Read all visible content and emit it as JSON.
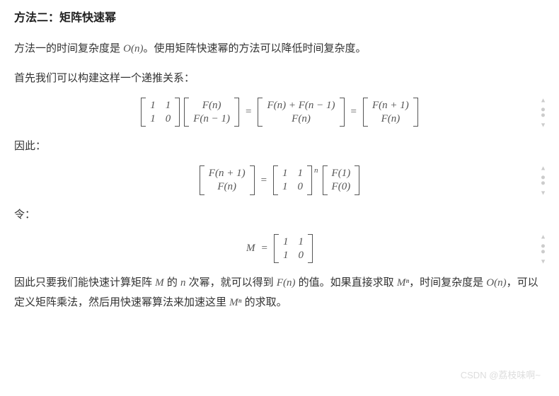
{
  "heading": "方法二：矩阵快速幂",
  "para1_a": "方法一的时间复杂度是 ",
  "para1_On": "O(n)",
  "para1_b": "。使用矩阵快速幂的方法可以降低时间复杂度。",
  "para2": "首先我们可以构建这样一个递推关系：",
  "para3": "因此：",
  "para4": "令：",
  "para5_a": "因此只要我们能快速计算矩阵 ",
  "para5_M": "M",
  "para5_b": " 的 ",
  "para5_n": "n",
  "para5_c": " 次幂，就可以得到 ",
  "para5_Fn": "F(n)",
  "para5_d": " 的值。如果直接求取 ",
  "para5_Mn": "Mⁿ",
  "para5_e": "，时间复杂度是 ",
  "para5_On": "O(n)",
  "para5_f": "，可以定义矩阵乘法，然后用快速幂算法来加速这里 ",
  "para5_Mn2": "Mⁿ",
  "para5_g": " 的求取。",
  "matrix": {
    "m11": "1",
    "m12": "1",
    "m21": "1",
    "m22": "0",
    "Fn": "F(n)",
    "Fnm1": "F(n − 1)",
    "Fnp1": "F(n + 1)",
    "sum": "F(n) + F(n − 1)",
    "F1": "F(1)",
    "F0": "F(0)",
    "Mdef": "M",
    "eq": "=",
    "expn": "n"
  },
  "watermark": "CSDN @荔枝味啊~",
  "style": {
    "text_color": "#333",
    "math_color": "#555",
    "bg": "#ffffff",
    "font_size": 15,
    "watermark_color": "#dddddd"
  }
}
